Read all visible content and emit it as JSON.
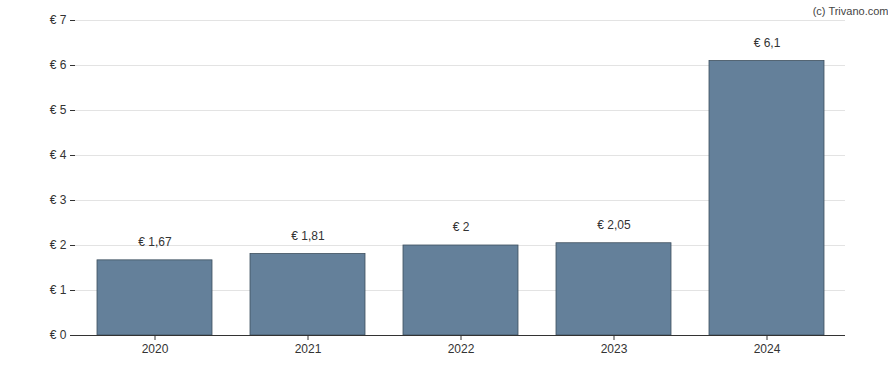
{
  "chart_data": {
    "type": "bar",
    "annotations": [
      "(c) Trivano.com"
    ],
    "categories": [
      "2020",
      "2021",
      "2022",
      "2023",
      "2024"
    ],
    "values": [
      1.67,
      1.81,
      2,
      2.05,
      6.1
    ],
    "value_labels": [
      "€ 1,67",
      "€ 1,81",
      "€ 2",
      "€ 2,05",
      "€ 6,1"
    ],
    "data_labels": true,
    "color": "#64809a",
    "ylim": [
      0,
      7
    ],
    "yticks": [
      {
        "value": 0,
        "label": "€ 0"
      },
      {
        "value": 1,
        "label": "€ 1"
      },
      {
        "value": 2,
        "label": "€ 2"
      },
      {
        "value": 3,
        "label": "€ 3"
      },
      {
        "value": 4,
        "label": "€ 4"
      },
      {
        "value": 5,
        "label": "€ 5"
      },
      {
        "value": 6,
        "label": "€ 6"
      },
      {
        "value": 7,
        "label": "€ 7"
      }
    ],
    "grid": true
  }
}
